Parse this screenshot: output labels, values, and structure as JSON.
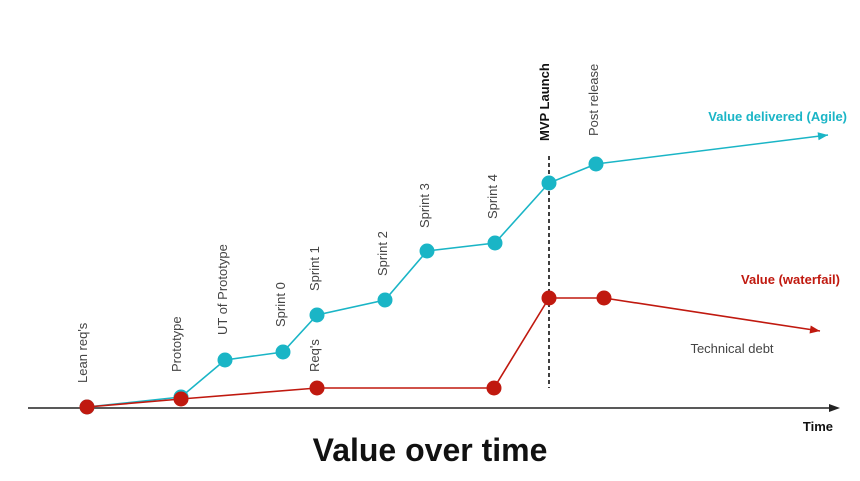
{
  "colors": {
    "agile": "#1ab5c6",
    "waterfall": "#c0190f",
    "axis": "#222222",
    "label": "#444444"
  },
  "chart_data": {
    "type": "line",
    "title": "Value over time",
    "xlabel": "Time",
    "ylabel": "",
    "milestone": {
      "label": "MVP Launch"
    },
    "series": [
      {
        "name": "Value delivered (Agile)",
        "color": "#1ab5c6",
        "points": [
          {
            "label": "Lean req's"
          },
          {
            "label": "Prototype"
          },
          {
            "label": "UT of Prototype"
          },
          {
            "label": "Sprint 0"
          },
          {
            "label": "Sprint 1"
          },
          {
            "label": "Sprint 2"
          },
          {
            "label": "Sprint 3"
          },
          {
            "label": "Sprint 4"
          },
          {
            "label": ""
          },
          {
            "label": "Post release"
          }
        ]
      },
      {
        "name": "Value (waterfail)",
        "color": "#c0190f",
        "points": [
          {
            "label": ""
          },
          {
            "label": ""
          },
          {
            "label": "Req's"
          },
          {
            "label": ""
          },
          {
            "label": ""
          },
          {
            "label": ""
          }
        ],
        "annotation": "Technical debt"
      }
    ]
  }
}
